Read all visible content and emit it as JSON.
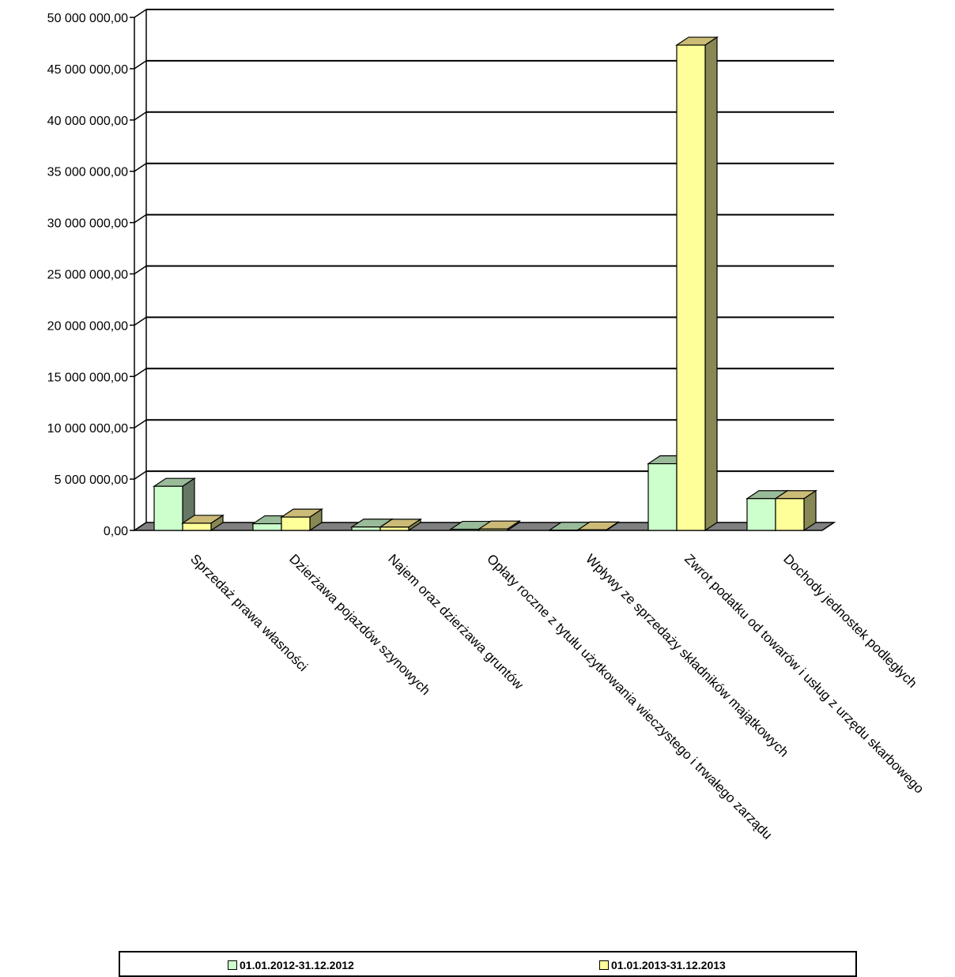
{
  "chart_data": {
    "type": "bar",
    "title": "",
    "xlabel": "",
    "ylabel": "",
    "ylim": [
      0,
      50000000
    ],
    "yticks": [
      "0,00",
      "5 000 000,00",
      "10 000 000,00",
      "15 000 000,00",
      "20 000 000,00",
      "25 000 000,00",
      "30 000 000,00",
      "35 000 000,00",
      "40 000 000,00",
      "45 000 000,00",
      "50 000 000,00"
    ],
    "categories": [
      "Sprzedaż prawa własności",
      "Dzierżawa pojazdów szynowych",
      "Najem oraz dzierżawa gruntów",
      "Opłaty roczne z tytułu użytkowania wieczystego i trwałego zarządu",
      "Wpływy ze sprzedaży składników majątkowych",
      "Zwrot podatku od towarów i usług z urzędu skarbowego",
      "Dochody jednostek podległych"
    ],
    "series": [
      {
        "name": "01.01.2012-31.12.2012",
        "values": [
          4300000,
          650000,
          330000,
          110000,
          20000,
          6500000,
          3100000
        ]
      },
      {
        "name": "01.01.2013-31.12.2013",
        "values": [
          700000,
          1300000,
          320000,
          140000,
          50000,
          47300000,
          3100000
        ]
      }
    ],
    "grid": true,
    "legend_position": "bottom",
    "colors": {
      "series1_front": "#ccffcc",
      "series1_top": "#99bb99",
      "series1_side": "#667766",
      "series2_front": "#ffff99",
      "series2_top": "#ccbb77",
      "series2_side": "#888855",
      "floor": "#808080"
    }
  }
}
